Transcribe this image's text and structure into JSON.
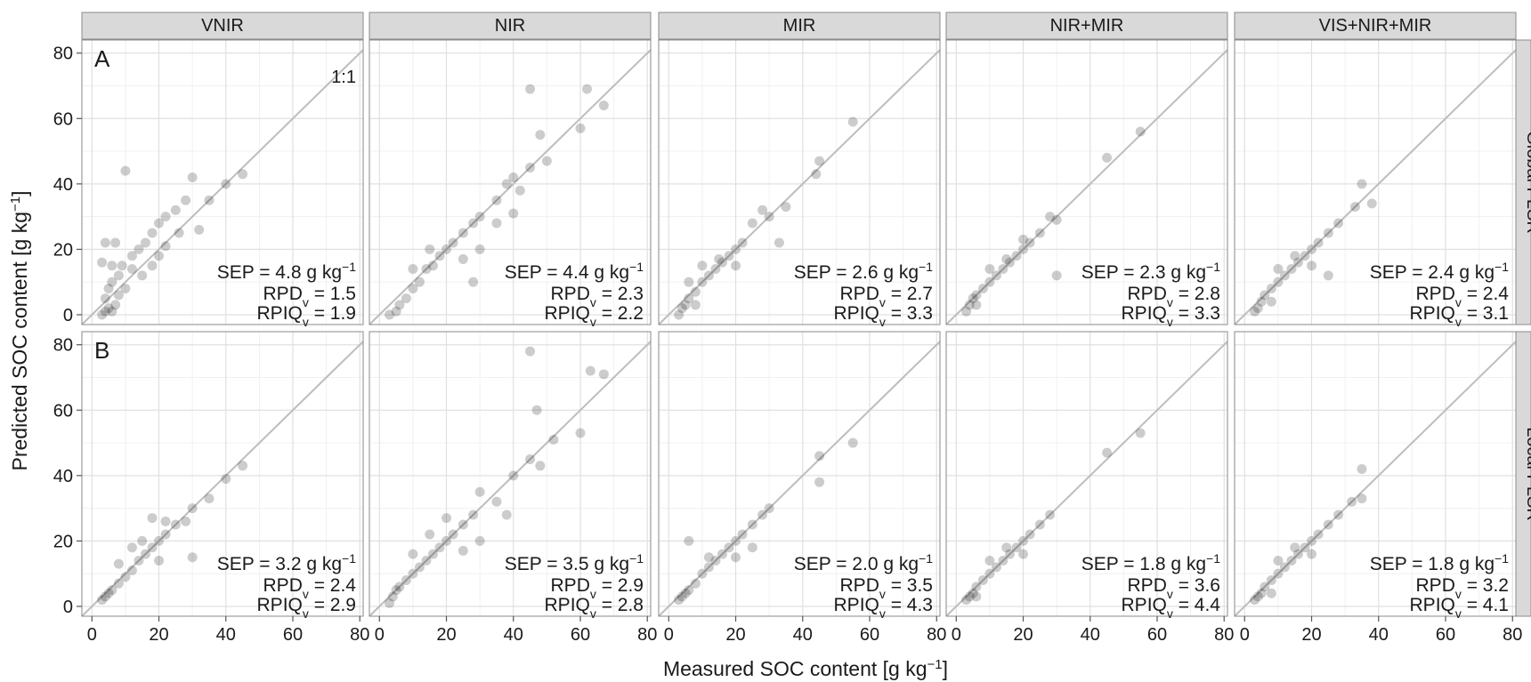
{
  "chart_data": {
    "type": "scatter",
    "xlabel": "Measured SOC content [g kg",
    "ylabel": "Predicted SOC content [g kg",
    "unit_superscript": "−1",
    "xlim": [
      -3,
      81
    ],
    "ylim": [
      -3,
      84
    ],
    "xticks": [
      0,
      20,
      40,
      60,
      80
    ],
    "yticks": [
      0,
      20,
      40,
      60,
      80
    ],
    "grid": true,
    "reference_line_label": "1:1",
    "colors": {
      "point": "#000000",
      "point_opacity": 0.2,
      "strip_background": "#d9d9d9",
      "grid_major": "#e0e0e0",
      "grid_minor": "#f0f0f0",
      "reference_line": "#bdbdbd"
    },
    "columns": [
      "VNIR",
      "NIR",
      "MIR",
      "NIR+MIR",
      "VIS+NIR+MIR"
    ],
    "rows": [
      {
        "strip": "Global PLSR",
        "panel_letter": "A"
      },
      {
        "strip": "Local PLSR",
        "panel_letter": "B"
      }
    ],
    "stats": [
      [
        {
          "sep": "SEP = 4.8 g kg",
          "rpd": "= 1.5",
          "rpiq": "= 1.9"
        },
        {
          "sep": "SEP = 4.4 g kg",
          "rpd": "= 2.3",
          "rpiq": "= 2.2"
        },
        {
          "sep": "SEP = 2.6 g kg",
          "rpd": "= 2.7",
          "rpiq": "= 3.3"
        },
        {
          "sep": "SEP = 2.3 g kg",
          "rpd": "= 2.8",
          "rpiq": "= 3.3"
        },
        {
          "sep": "SEP = 2.4 g kg",
          "rpd": "= 2.4",
          "rpiq": "= 3.1"
        }
      ],
      [
        {
          "sep": "SEP = 3.2 g kg",
          "rpd": "= 2.4",
          "rpiq": "= 2.9"
        },
        {
          "sep": "SEP = 3.5 g kg",
          "rpd": "= 2.9",
          "rpiq": "= 2.8"
        },
        {
          "sep": "SEP = 2.0 g kg",
          "rpd": "= 3.5",
          "rpiq": "= 4.3"
        },
        {
          "sep": "SEP = 1.8 g kg",
          "rpd": "= 3.6",
          "rpiq": "= 4.4"
        },
        {
          "sep": "SEP = 1.8 g kg",
          "rpd": "= 3.2",
          "rpiq": "= 4.1"
        }
      ]
    ],
    "stat_prefix": {
      "rpd": "RPD",
      "rpiq": "RPIQ",
      "subscript": "v"
    },
    "series": [
      [
        {
          "panel": "VNIR / Global PLSR",
          "points": [
            [
              3,
              0
            ],
            [
              4,
              1
            ],
            [
              5,
              2
            ],
            [
              6,
              1
            ],
            [
              7,
              3
            ],
            [
              4,
              5
            ],
            [
              5,
              8
            ],
            [
              6,
              10
            ],
            [
              8,
              12
            ],
            [
              9,
              15
            ],
            [
              10,
              8
            ],
            [
              12,
              18
            ],
            [
              14,
              20
            ],
            [
              16,
              22
            ],
            [
              18,
              25
            ],
            [
              20,
              28
            ],
            [
              22,
              30
            ],
            [
              25,
              32
            ],
            [
              28,
              35
            ],
            [
              30,
              42
            ],
            [
              10,
              44
            ],
            [
              35,
              35
            ],
            [
              40,
              40
            ],
            [
              45,
              43
            ],
            [
              12,
              14
            ],
            [
              15,
              12
            ],
            [
              8,
              6
            ],
            [
              20,
              18
            ],
            [
              18,
              15
            ],
            [
              6,
              15
            ],
            [
              3,
              16
            ],
            [
              4,
              22
            ],
            [
              7,
              22
            ],
            [
              22,
              21
            ],
            [
              26,
              25
            ],
            [
              32,
              26
            ]
          ]
        },
        {
          "panel": "NIR / Global PLSR",
          "points": [
            [
              3,
              0
            ],
            [
              5,
              1
            ],
            [
              6,
              3
            ],
            [
              8,
              5
            ],
            [
              10,
              8
            ],
            [
              12,
              10
            ],
            [
              14,
              14
            ],
            [
              16,
              15
            ],
            [
              18,
              18
            ],
            [
              20,
              20
            ],
            [
              22,
              22
            ],
            [
              25,
              25
            ],
            [
              28,
              28
            ],
            [
              30,
              30
            ],
            [
              35,
              35
            ],
            [
              38,
              40
            ],
            [
              40,
              42
            ],
            [
              45,
              45
            ],
            [
              48,
              55
            ],
            [
              50,
              47
            ],
            [
              45,
              69
            ],
            [
              60,
              57
            ],
            [
              62,
              69
            ],
            [
              67,
              64
            ],
            [
              40,
              31
            ],
            [
              30,
              20
            ],
            [
              25,
              17
            ],
            [
              15,
              20
            ],
            [
              10,
              14
            ],
            [
              28,
              10
            ],
            [
              35,
              28
            ],
            [
              42,
              38
            ]
          ]
        },
        {
          "panel": "MIR / Global PLSR",
          "points": [
            [
              3,
              0
            ],
            [
              4,
              2
            ],
            [
              5,
              3
            ],
            [
              6,
              5
            ],
            [
              8,
              7
            ],
            [
              10,
              10
            ],
            [
              12,
              12
            ],
            [
              14,
              14
            ],
            [
              16,
              16
            ],
            [
              18,
              18
            ],
            [
              20,
              20
            ],
            [
              22,
              22
            ],
            [
              25,
              28
            ],
            [
              28,
              32
            ],
            [
              30,
              30
            ],
            [
              35,
              33
            ],
            [
              45,
              47
            ],
            [
              44,
              43
            ],
            [
              55,
              59
            ],
            [
              6,
              10
            ],
            [
              10,
              15
            ],
            [
              15,
              17
            ],
            [
              20,
              15
            ],
            [
              8,
              3
            ],
            [
              33,
              22
            ]
          ]
        },
        {
          "panel": "NIR+MIR / Global PLSR",
          "points": [
            [
              3,
              1
            ],
            [
              4,
              3
            ],
            [
              5,
              5
            ],
            [
              6,
              6
            ],
            [
              8,
              8
            ],
            [
              10,
              10
            ],
            [
              12,
              12
            ],
            [
              14,
              14
            ],
            [
              16,
              16
            ],
            [
              18,
              18
            ],
            [
              20,
              20
            ],
            [
              22,
              22
            ],
            [
              25,
              25
            ],
            [
              28,
              30
            ],
            [
              30,
              29
            ],
            [
              45,
              48
            ],
            [
              55,
              56
            ],
            [
              10,
              14
            ],
            [
              15,
              17
            ],
            [
              20,
              23
            ],
            [
              6,
              3
            ],
            [
              30,
              12
            ]
          ]
        },
        {
          "panel": "VIS+NIR+MIR / Global PLSR",
          "points": [
            [
              3,
              1
            ],
            [
              4,
              2
            ],
            [
              5,
              4
            ],
            [
              6,
              6
            ],
            [
              8,
              8
            ],
            [
              10,
              10
            ],
            [
              12,
              12
            ],
            [
              14,
              14
            ],
            [
              16,
              16
            ],
            [
              18,
              18
            ],
            [
              20,
              20
            ],
            [
              22,
              22
            ],
            [
              25,
              25
            ],
            [
              28,
              28
            ],
            [
              33,
              33
            ],
            [
              35,
              40
            ],
            [
              38,
              34
            ],
            [
              10,
              14
            ],
            [
              15,
              18
            ],
            [
              20,
              15
            ],
            [
              8,
              4
            ],
            [
              25,
              12
            ]
          ]
        }
      ],
      [
        {
          "panel": "VNIR / Local PLSR",
          "points": [
            [
              3,
              2
            ],
            [
              4,
              3
            ],
            [
              5,
              4
            ],
            [
              6,
              5
            ],
            [
              8,
              7
            ],
            [
              10,
              9
            ],
            [
              12,
              11
            ],
            [
              14,
              14
            ],
            [
              16,
              16
            ],
            [
              18,
              18
            ],
            [
              20,
              20
            ],
            [
              22,
              22
            ],
            [
              25,
              25
            ],
            [
              28,
              26
            ],
            [
              30,
              30
            ],
            [
              35,
              33
            ],
            [
              40,
              39
            ],
            [
              45,
              43
            ],
            [
              8,
              13
            ],
            [
              12,
              18
            ],
            [
              15,
              20
            ],
            [
              18,
              27
            ],
            [
              22,
              26
            ],
            [
              20,
              14
            ],
            [
              30,
              15
            ]
          ]
        },
        {
          "panel": "NIR / Local PLSR",
          "points": [
            [
              3,
              1
            ],
            [
              4,
              3
            ],
            [
              5,
              5
            ],
            [
              6,
              6
            ],
            [
              8,
              8
            ],
            [
              10,
              10
            ],
            [
              12,
              12
            ],
            [
              14,
              14
            ],
            [
              16,
              16
            ],
            [
              18,
              18
            ],
            [
              20,
              20
            ],
            [
              22,
              22
            ],
            [
              25,
              25
            ],
            [
              28,
              28
            ],
            [
              30,
              35
            ],
            [
              35,
              32
            ],
            [
              40,
              40
            ],
            [
              45,
              45
            ],
            [
              48,
              43
            ],
            [
              47,
              60
            ],
            [
              45,
              78
            ],
            [
              52,
              51
            ],
            [
              60,
              53
            ],
            [
              63,
              72
            ],
            [
              67,
              71
            ],
            [
              10,
              16
            ],
            [
              15,
              22
            ],
            [
              20,
              27
            ],
            [
              25,
              17
            ],
            [
              30,
              20
            ],
            [
              38,
              28
            ]
          ]
        },
        {
          "panel": "MIR / Local PLSR",
          "points": [
            [
              3,
              2
            ],
            [
              4,
              3
            ],
            [
              5,
              4
            ],
            [
              6,
              5
            ],
            [
              8,
              7
            ],
            [
              10,
              10
            ],
            [
              12,
              12
            ],
            [
              14,
              14
            ],
            [
              16,
              16
            ],
            [
              18,
              18
            ],
            [
              20,
              20
            ],
            [
              22,
              22
            ],
            [
              25,
              25
            ],
            [
              28,
              28
            ],
            [
              30,
              30
            ],
            [
              45,
              46
            ],
            [
              45,
              38
            ],
            [
              55,
              50
            ],
            [
              6,
              20
            ],
            [
              12,
              15
            ],
            [
              20,
              15
            ],
            [
              25,
              18
            ]
          ]
        },
        {
          "panel": "NIR+MIR / Local PLSR",
          "points": [
            [
              3,
              2
            ],
            [
              4,
              3
            ],
            [
              5,
              4
            ],
            [
              6,
              6
            ],
            [
              8,
              8
            ],
            [
              10,
              10
            ],
            [
              12,
              12
            ],
            [
              14,
              14
            ],
            [
              16,
              16
            ],
            [
              18,
              18
            ],
            [
              20,
              20
            ],
            [
              22,
              22
            ],
            [
              25,
              25
            ],
            [
              28,
              28
            ],
            [
              45,
              47
            ],
            [
              55,
              53
            ],
            [
              10,
              14
            ],
            [
              15,
              18
            ],
            [
              20,
              16
            ],
            [
              6,
              3
            ]
          ]
        },
        {
          "panel": "VIS+NIR+MIR / Local PLSR",
          "points": [
            [
              3,
              2
            ],
            [
              4,
              3
            ],
            [
              5,
              4
            ],
            [
              6,
              6
            ],
            [
              8,
              8
            ],
            [
              10,
              10
            ],
            [
              12,
              12
            ],
            [
              14,
              14
            ],
            [
              16,
              16
            ],
            [
              18,
              18
            ],
            [
              20,
              20
            ],
            [
              22,
              22
            ],
            [
              25,
              25
            ],
            [
              28,
              28
            ],
            [
              32,
              32
            ],
            [
              35,
              33
            ],
            [
              35,
              42
            ],
            [
              10,
              14
            ],
            [
              15,
              18
            ],
            [
              20,
              16
            ],
            [
              8,
              4
            ]
          ]
        }
      ]
    ]
  }
}
